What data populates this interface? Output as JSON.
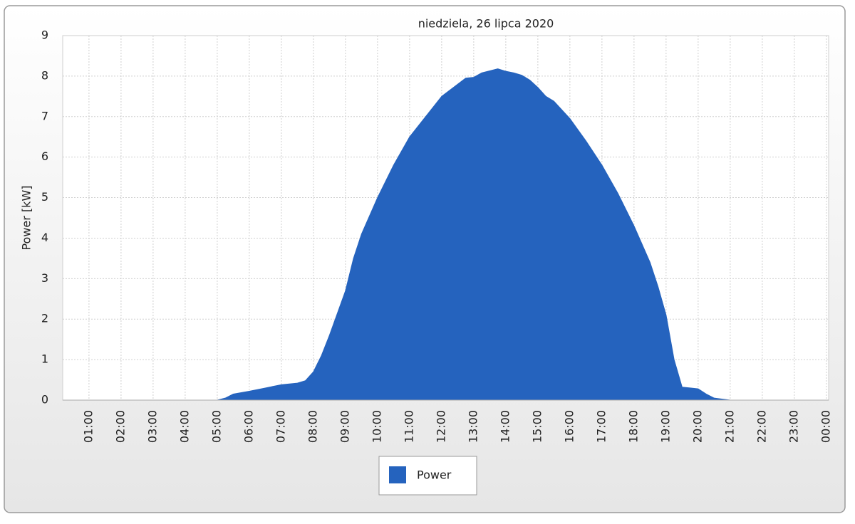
{
  "chart_data": {
    "type": "area",
    "title": "niedziela, 26 lipca 2020",
    "y_label": "Power [kW]",
    "x": [
      0.25,
      5.0,
      5.25,
      5.5,
      6.0,
      6.5,
      7.0,
      7.5,
      7.75,
      8.0,
      8.25,
      8.5,
      9.0,
      9.25,
      9.5,
      10.0,
      10.5,
      11.0,
      11.5,
      12.0,
      12.5,
      12.75,
      13.0,
      13.25,
      13.75,
      14.0,
      14.25,
      14.5,
      14.75,
      15.0,
      15.25,
      15.5,
      16.0,
      16.5,
      17.0,
      17.5,
      18.0,
      18.5,
      18.75,
      19.0,
      19.25,
      19.5,
      19.75,
      20.0,
      20.25,
      20.5,
      21.0,
      24.0
    ],
    "series": [
      {
        "name": "Power",
        "color": "#2563be",
        "values": [
          0,
          0,
          0.05,
          0.15,
          0.22,
          0.3,
          0.38,
          0.42,
          0.48,
          0.7,
          1.1,
          1.6,
          2.7,
          3.5,
          4.1,
          5.0,
          5.8,
          6.5,
          7.0,
          7.5,
          7.8,
          7.95,
          7.97,
          8.08,
          8.18,
          8.12,
          8.08,
          8.02,
          7.9,
          7.72,
          7.5,
          7.38,
          6.95,
          6.4,
          5.8,
          5.1,
          4.3,
          3.4,
          2.8,
          2.1,
          1.0,
          0.32,
          0.3,
          0.28,
          0.15,
          0.05,
          0,
          0
        ]
      }
    ],
    "xlim": [
      0.18,
      24.07
    ],
    "xticks": [
      {
        "value": 1,
        "label": "01:00"
      },
      {
        "value": 2,
        "label": "02:00"
      },
      {
        "value": 3,
        "label": "03:00"
      },
      {
        "value": 4,
        "label": "04:00"
      },
      {
        "value": 5,
        "label": "05:00"
      },
      {
        "value": 6,
        "label": "06:00"
      },
      {
        "value": 7,
        "label": "07:00"
      },
      {
        "value": 8,
        "label": "08:00"
      },
      {
        "value": 9,
        "label": "09:00"
      },
      {
        "value": 10,
        "label": "10:00"
      },
      {
        "value": 11,
        "label": "11:00"
      },
      {
        "value": 12,
        "label": "12:00"
      },
      {
        "value": 13,
        "label": "13:00"
      },
      {
        "value": 14,
        "label": "14:00"
      },
      {
        "value": 15,
        "label": "15:00"
      },
      {
        "value": 16,
        "label": "16:00"
      },
      {
        "value": 17,
        "label": "17:00"
      },
      {
        "value": 18,
        "label": "18:00"
      },
      {
        "value": 19,
        "label": "19:00"
      },
      {
        "value": 20,
        "label": "20:00"
      },
      {
        "value": 21,
        "label": "21:00"
      },
      {
        "value": 22,
        "label": "22:00"
      },
      {
        "value": 23,
        "label": "23:00"
      },
      {
        "value": 24,
        "label": "00:00"
      }
    ],
    "ylim": [
      0,
      9
    ],
    "yticks": [
      0,
      1,
      2,
      3,
      4,
      5,
      6,
      7,
      8,
      9
    ],
    "grid": true
  }
}
